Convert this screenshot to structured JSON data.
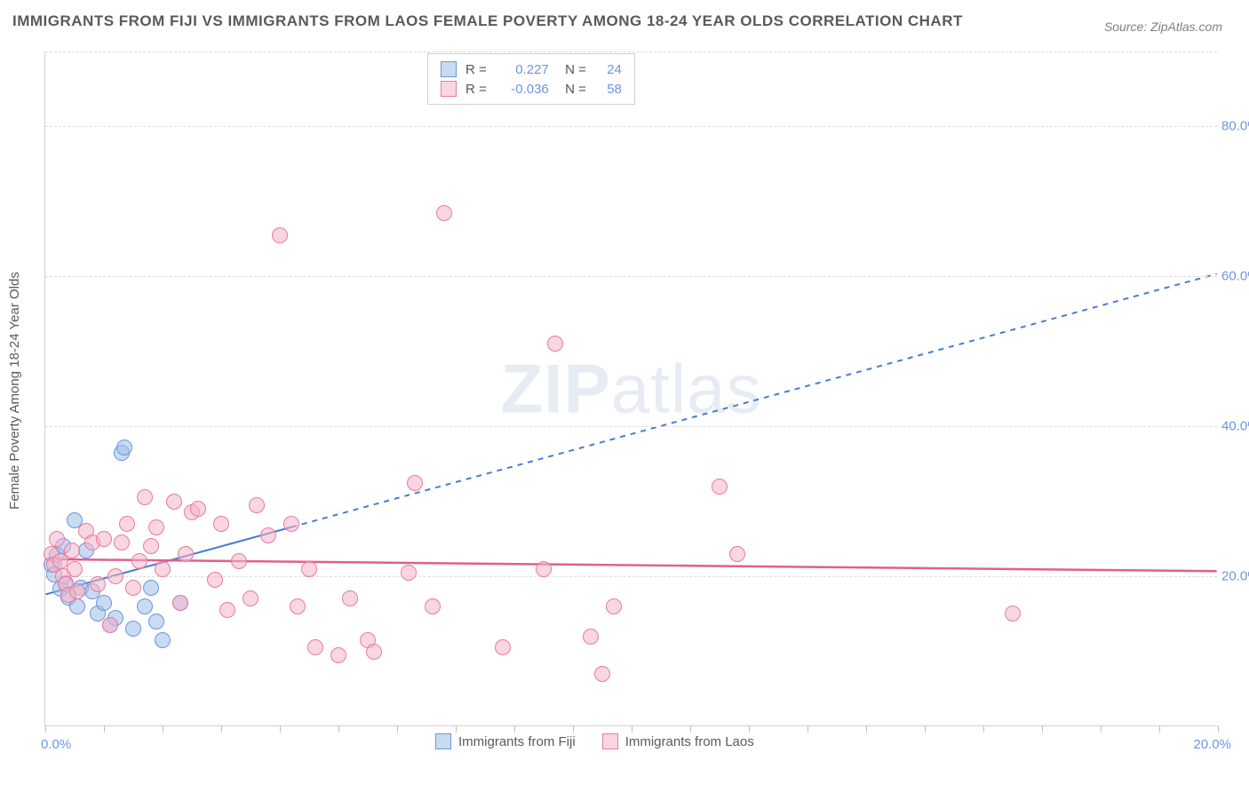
{
  "title": "IMMIGRANTS FROM FIJI VS IMMIGRANTS FROM LAOS FEMALE POVERTY AMONG 18-24 YEAR OLDS CORRELATION CHART",
  "source": "Source: ZipAtlas.com",
  "watermark_a": "ZIP",
  "watermark_b": "atlas",
  "y_axis_title": "Female Poverty Among 18-24 Year Olds",
  "x_axis_left": "0.0%",
  "x_axis_right": "20.0%",
  "chart": {
    "type": "scatter",
    "xlim": [
      0,
      20
    ],
    "ylim": [
      0,
      90
    ],
    "x_ticks": [
      0,
      1,
      2,
      3,
      4,
      5,
      6,
      7,
      8,
      9,
      10,
      11,
      12,
      13,
      14,
      15,
      16,
      17,
      18,
      19,
      20
    ],
    "y_ticks": [
      {
        "v": 20,
        "label": "20.0%"
      },
      {
        "v": 40,
        "label": "40.0%"
      },
      {
        "v": 60,
        "label": "60.0%"
      },
      {
        "v": 80,
        "label": "80.0%"
      }
    ],
    "grid_color": "#dcdcdc",
    "background_color": "#ffffff",
    "marker_radius": 9,
    "series": [
      {
        "name": "Immigrants from Fiji",
        "key": "fiji",
        "fill": "rgba(157,189,234,0.55)",
        "stroke": "#6b95e0",
        "R": "0.227",
        "N": "24",
        "trend": {
          "solid_to_x": 4.2,
          "y0": 17.5,
          "slope": 2.14,
          "color": "#4a7bd4",
          "width": 2,
          "dash": "6 6"
        },
        "points": [
          [
            0.1,
            21.5
          ],
          [
            0.15,
            20.2
          ],
          [
            0.2,
            22.8
          ],
          [
            0.25,
            18.3
          ],
          [
            0.3,
            24.0
          ],
          [
            0.35,
            19.1
          ],
          [
            0.4,
            17.2
          ],
          [
            0.5,
            27.5
          ],
          [
            0.55,
            16.0
          ],
          [
            0.6,
            18.5
          ],
          [
            0.7,
            23.5
          ],
          [
            0.8,
            18.0
          ],
          [
            0.9,
            15.0
          ],
          [
            1.0,
            16.5
          ],
          [
            1.1,
            13.5
          ],
          [
            1.2,
            14.5
          ],
          [
            1.3,
            36.5
          ],
          [
            1.35,
            37.2
          ],
          [
            1.5,
            13.0
          ],
          [
            1.7,
            16.0
          ],
          [
            1.8,
            18.5
          ],
          [
            1.9,
            14.0
          ],
          [
            2.0,
            11.5
          ],
          [
            2.3,
            16.5
          ]
        ]
      },
      {
        "name": "Immigrants from Laos",
        "key": "laos",
        "fill": "rgba(244,180,200,0.55)",
        "stroke": "#e87ba0",
        "R": "-0.036",
        "N": "58",
        "trend": {
          "solid_to_x": 20,
          "y0": 22.2,
          "slope": -0.08,
          "color": "#e0608c",
          "width": 2.5,
          "dash": ""
        },
        "points": [
          [
            0.1,
            23.0
          ],
          [
            0.15,
            21.5
          ],
          [
            0.2,
            25.0
          ],
          [
            0.25,
            22.0
          ],
          [
            0.3,
            20.0
          ],
          [
            0.35,
            19.0
          ],
          [
            0.4,
            17.5
          ],
          [
            0.45,
            23.5
          ],
          [
            0.5,
            21.0
          ],
          [
            0.55,
            18.0
          ],
          [
            0.7,
            26.0
          ],
          [
            0.8,
            24.5
          ],
          [
            0.9,
            19.0
          ],
          [
            1.0,
            25.0
          ],
          [
            1.1,
            13.5
          ],
          [
            1.2,
            20.0
          ],
          [
            1.3,
            24.5
          ],
          [
            1.4,
            27.0
          ],
          [
            1.5,
            18.5
          ],
          [
            1.6,
            22.0
          ],
          [
            1.7,
            30.5
          ],
          [
            1.8,
            24.0
          ],
          [
            1.9,
            26.5
          ],
          [
            2.0,
            21.0
          ],
          [
            2.2,
            30.0
          ],
          [
            2.3,
            16.5
          ],
          [
            2.4,
            23.0
          ],
          [
            2.5,
            28.5
          ],
          [
            2.6,
            29.0
          ],
          [
            2.9,
            19.5
          ],
          [
            3.0,
            27.0
          ],
          [
            3.1,
            15.5
          ],
          [
            3.3,
            22.0
          ],
          [
            3.5,
            17.0
          ],
          [
            3.8,
            25.5
          ],
          [
            4.0,
            65.5
          ],
          [
            4.2,
            27.0
          ],
          [
            4.3,
            16.0
          ],
          [
            4.5,
            21.0
          ],
          [
            4.6,
            10.5
          ],
          [
            5.0,
            9.5
          ],
          [
            5.2,
            17.0
          ],
          [
            5.5,
            11.5
          ],
          [
            5.6,
            10.0
          ],
          [
            6.2,
            20.5
          ],
          [
            6.3,
            32.5
          ],
          [
            6.6,
            16.0
          ],
          [
            6.8,
            68.5
          ],
          [
            7.8,
            10.5
          ],
          [
            8.5,
            21.0
          ],
          [
            8.7,
            51.0
          ],
          [
            9.3,
            12.0
          ],
          [
            9.5,
            7.0
          ],
          [
            9.7,
            16.0
          ],
          [
            11.5,
            32.0
          ],
          [
            11.8,
            23.0
          ],
          [
            16.5,
            15.0
          ],
          [
            3.6,
            29.5
          ]
        ]
      }
    ]
  },
  "legend_bottom": [
    {
      "label": "Immigrants from Fiji",
      "fill": "rgba(157,189,234,0.55)",
      "stroke": "#6b95e0"
    },
    {
      "label": "Immigrants from Laos",
      "fill": "rgba(244,180,200,0.55)",
      "stroke": "#e87ba0"
    }
  ]
}
